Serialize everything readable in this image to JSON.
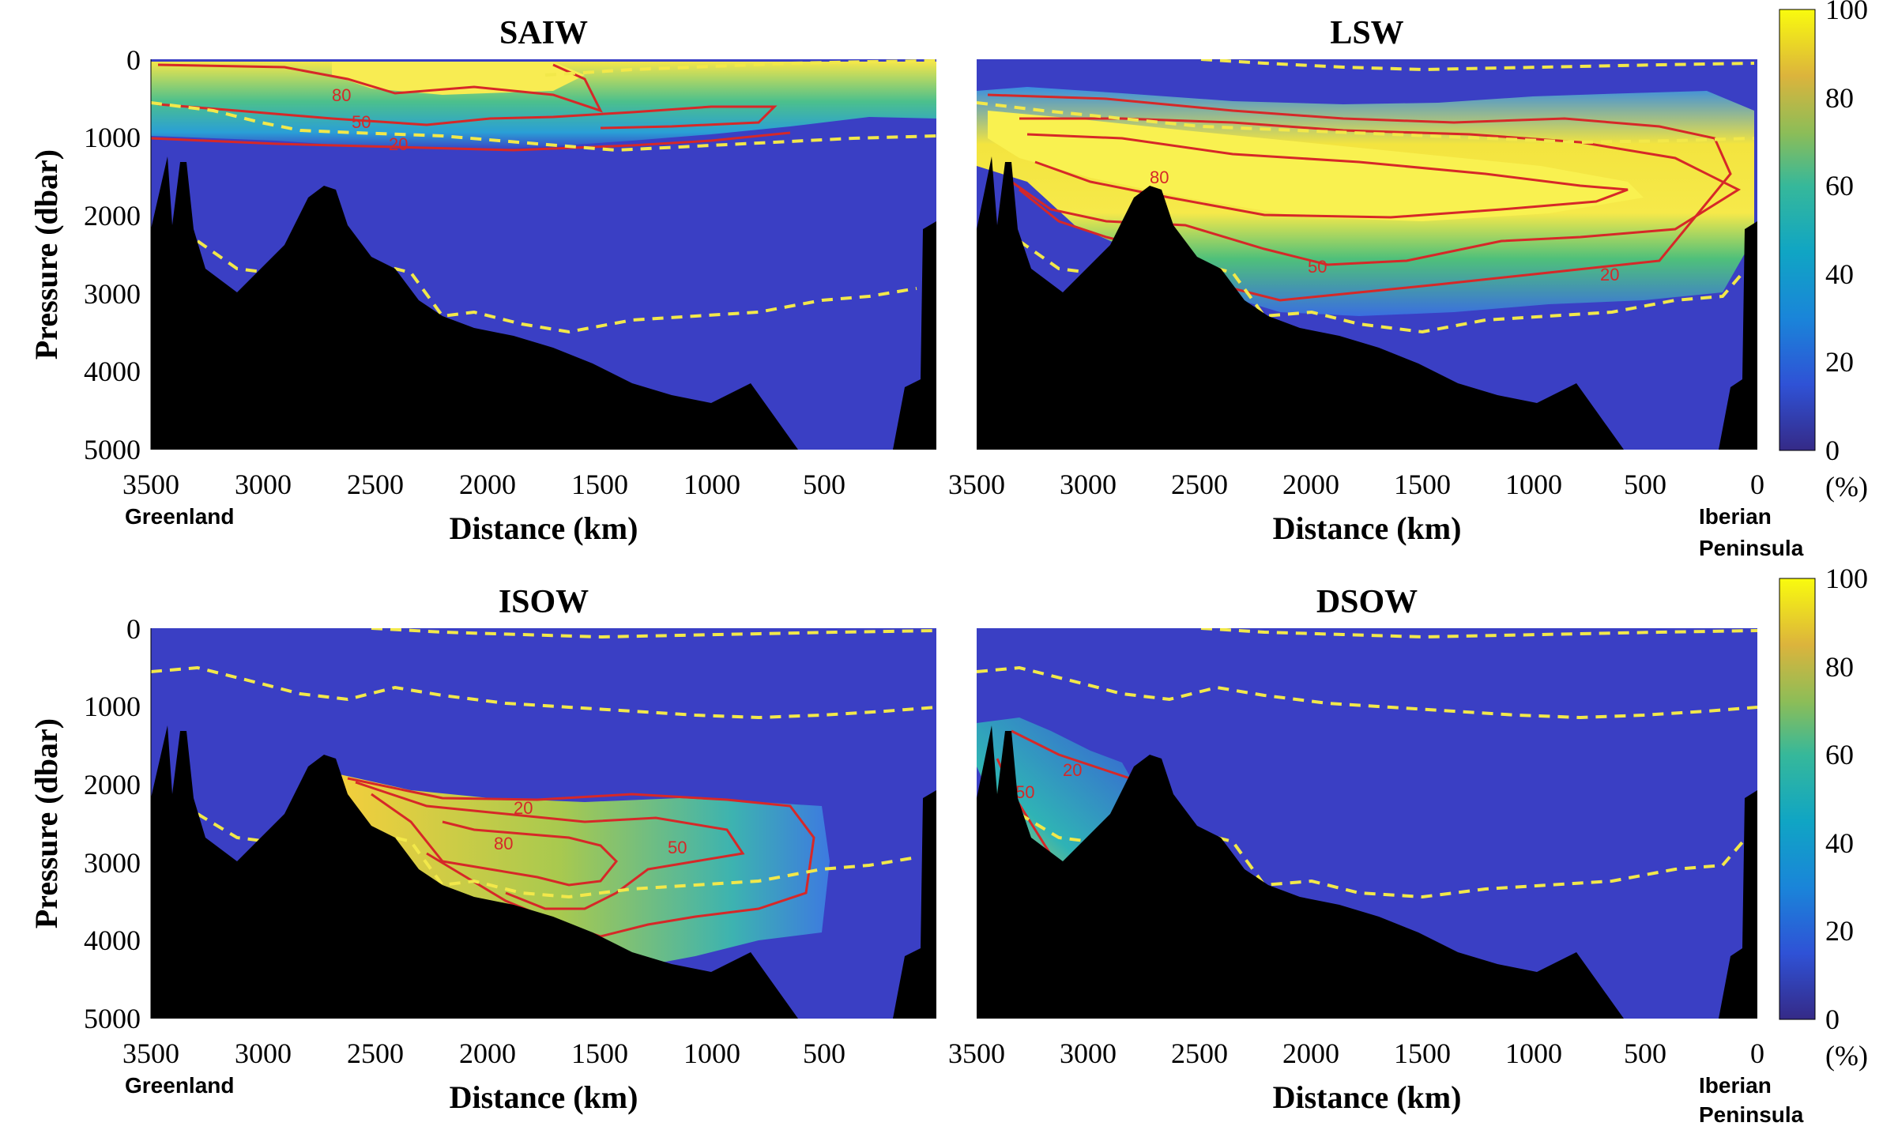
{
  "colors": {
    "ocean_background": "#3a3fc4",
    "bathymetry": "#000000",
    "contour_line": "#d62828",
    "isopycnal_dashed": "#f2e84a"
  },
  "colorbar": {
    "colormap": "parula",
    "ticks": [
      "0",
      "20",
      "40",
      "60",
      "80",
      "100"
    ],
    "unit": "(%)"
  },
  "places": {
    "left": "Greenland",
    "right_line1": "Iberian",
    "right_line2": "Peninsula"
  },
  "chart_data": [
    {
      "type": "heatmap",
      "title": "SAIW",
      "xlabel": "Distance (km)",
      "ylabel": "Pressure (dbar)",
      "x_ticks": [
        "3500",
        "3000",
        "2500",
        "2000",
        "1500",
        "1000",
        "500"
      ],
      "y_ticks": [
        "0",
        "1000",
        "2000",
        "3000",
        "4000",
        "5000"
      ],
      "xlim": [
        3500,
        0
      ],
      "ylim": [
        0,
        5000
      ],
      "contour_levels": [
        "20",
        "50",
        "80"
      ],
      "core": {
        "x_from": 3400,
        "x_to": 400,
        "p_center": 300,
        "max_percent": 95
      }
    },
    {
      "type": "heatmap",
      "title": "LSW",
      "xlabel": "Distance (km)",
      "ylabel": "",
      "x_ticks": [
        "3500",
        "3000",
        "2500",
        "2000",
        "1500",
        "1000",
        "500",
        "0"
      ],
      "y_ticks": [],
      "xlim": [
        3500,
        0
      ],
      "ylim": [
        0,
        5000
      ],
      "contour_levels": [
        "20",
        "50",
        "80"
      ],
      "core": {
        "x_from": 3400,
        "x_to": 100,
        "p_center": 1500,
        "max_percent": 100
      }
    },
    {
      "type": "heatmap",
      "title": "ISOW",
      "xlabel": "Distance (km)",
      "ylabel": "Pressure (dbar)",
      "x_ticks": [
        "3500",
        "3000",
        "2500",
        "2000",
        "1500",
        "1000",
        "500"
      ],
      "y_ticks": [
        "0",
        "1000",
        "2000",
        "3000",
        "4000",
        "5000"
      ],
      "xlim": [
        3500,
        0
      ],
      "ylim": [
        0,
        5000
      ],
      "contour_levels": [
        "20",
        "50",
        "80"
      ],
      "core": {
        "x_from": 2600,
        "x_to": 500,
        "p_center": 3000,
        "max_percent": 90
      }
    },
    {
      "type": "heatmap",
      "title": "DSOW",
      "xlabel": "Distance (km)",
      "ylabel": "",
      "x_ticks": [
        "3500",
        "3000",
        "2500",
        "2000",
        "1500",
        "1000",
        "500",
        "0"
      ],
      "y_ticks": [],
      "xlim": [
        3500,
        0
      ],
      "ylim": [
        0,
        5000
      ],
      "contour_levels": [
        "20",
        "50"
      ],
      "core": {
        "x_from": 3500,
        "x_to": 2700,
        "p_center": 2300,
        "max_percent": 60
      }
    }
  ]
}
